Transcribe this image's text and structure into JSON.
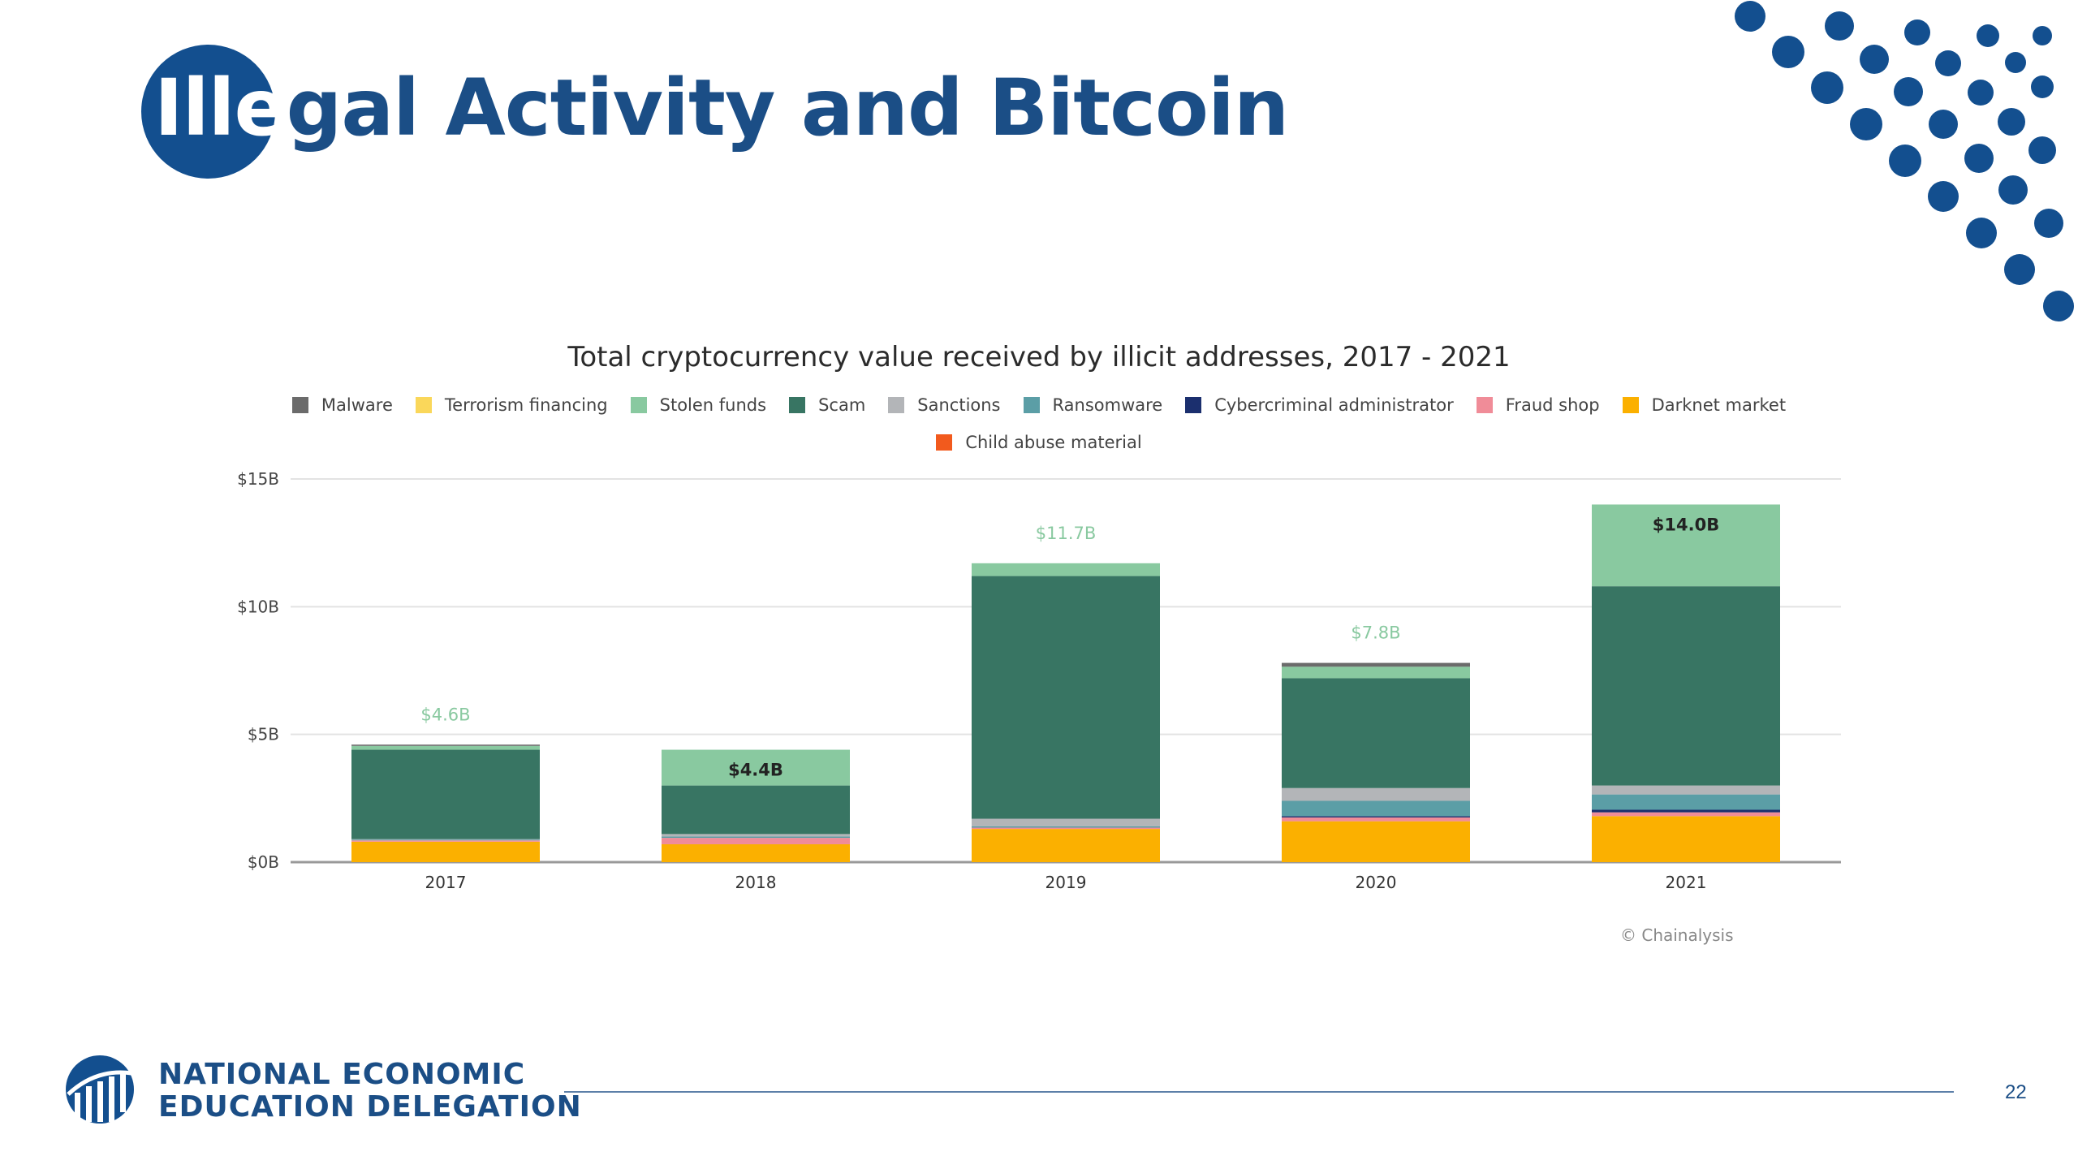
{
  "slide": {
    "title_highlight": "Ille",
    "title_rest": "gal Activity and Bitcoin",
    "page_number": "22",
    "org_line1": "NATIONAL ECONOMIC",
    "org_line2": "EDUCATION DELEGATION",
    "credit": "© Chainalysis",
    "brand_color": "#134f8f"
  },
  "chart_data": {
    "type": "bar",
    "stacked": true,
    "title": "Total cryptocurrency value received by illicit addresses, 2017 - 2021",
    "categories": [
      "2017",
      "2018",
      "2019",
      "2020",
      "2021"
    ],
    "ylim": [
      0,
      15
    ],
    "yticks": [
      0,
      5,
      10,
      15
    ],
    "ytick_labels": [
      "$0B",
      "$5B",
      "$10B",
      "$15B"
    ],
    "grid": true,
    "legend_position": "top",
    "series": [
      {
        "name": "Darknet market",
        "color": "#fbb000",
        "values": [
          0.8,
          0.7,
          1.3,
          1.6,
          1.8
        ]
      },
      {
        "name": "Fraud shop",
        "color": "#f08c98",
        "values": [
          0.05,
          0.25,
          0.05,
          0.15,
          0.15
        ]
      },
      {
        "name": "Cybercriminal administrator",
        "color": "#1b2f6e",
        "values": [
          0.0,
          0.0,
          0.0,
          0.05,
          0.1
        ]
      },
      {
        "name": "Ransomware",
        "color": "#5b9ea6",
        "values": [
          0.03,
          0.05,
          0.05,
          0.6,
          0.6
        ]
      },
      {
        "name": "Sanctions",
        "color": "#b3b5b8",
        "values": [
          0.02,
          0.1,
          0.3,
          0.5,
          0.35
        ]
      },
      {
        "name": "Scam",
        "color": "#387563",
        "values": [
          3.5,
          1.9,
          9.5,
          4.3,
          7.8
        ]
      },
      {
        "name": "Stolen funds",
        "color": "#89c9a0",
        "values": [
          0.15,
          1.4,
          0.5,
          0.45,
          3.2
        ]
      },
      {
        "name": "Terrorism financing",
        "color": "#fad75a",
        "values": [
          0.0,
          0.0,
          0.0,
          0.0,
          0.0
        ]
      },
      {
        "name": "Malware",
        "color": "#6b6b6b",
        "values": [
          0.05,
          0.0,
          0.0,
          0.15,
          0.0
        ]
      },
      {
        "name": "Child abuse material",
        "color": "#f25a1d",
        "values": [
          0.0,
          0.0,
          0.0,
          0.0,
          0.0
        ]
      }
    ],
    "legend_order": [
      "Malware",
      "Terrorism financing",
      "Stolen funds",
      "Scam",
      "Sanctions",
      "Ransomware",
      "Cybercriminal administrator",
      "Fraud shop",
      "Darknet market",
      "Child abuse material"
    ],
    "total_labels": [
      {
        "category": "2017",
        "text": "$4.6B",
        "value": 4.6,
        "placement": "above",
        "color": "#89c9a0"
      },
      {
        "category": "2018",
        "text": "$4.4B",
        "value": 4.4,
        "placement": "inside",
        "color": "#222222"
      },
      {
        "category": "2019",
        "text": "$11.7B",
        "value": 11.7,
        "placement": "above",
        "color": "#89c9a0"
      },
      {
        "category": "2020",
        "text": "$7.8B",
        "value": 7.8,
        "placement": "above",
        "color": "#89c9a0"
      },
      {
        "category": "2021",
        "text": "$14.0B",
        "value": 14.0,
        "placement": "inside",
        "color": "#222222"
      }
    ]
  }
}
